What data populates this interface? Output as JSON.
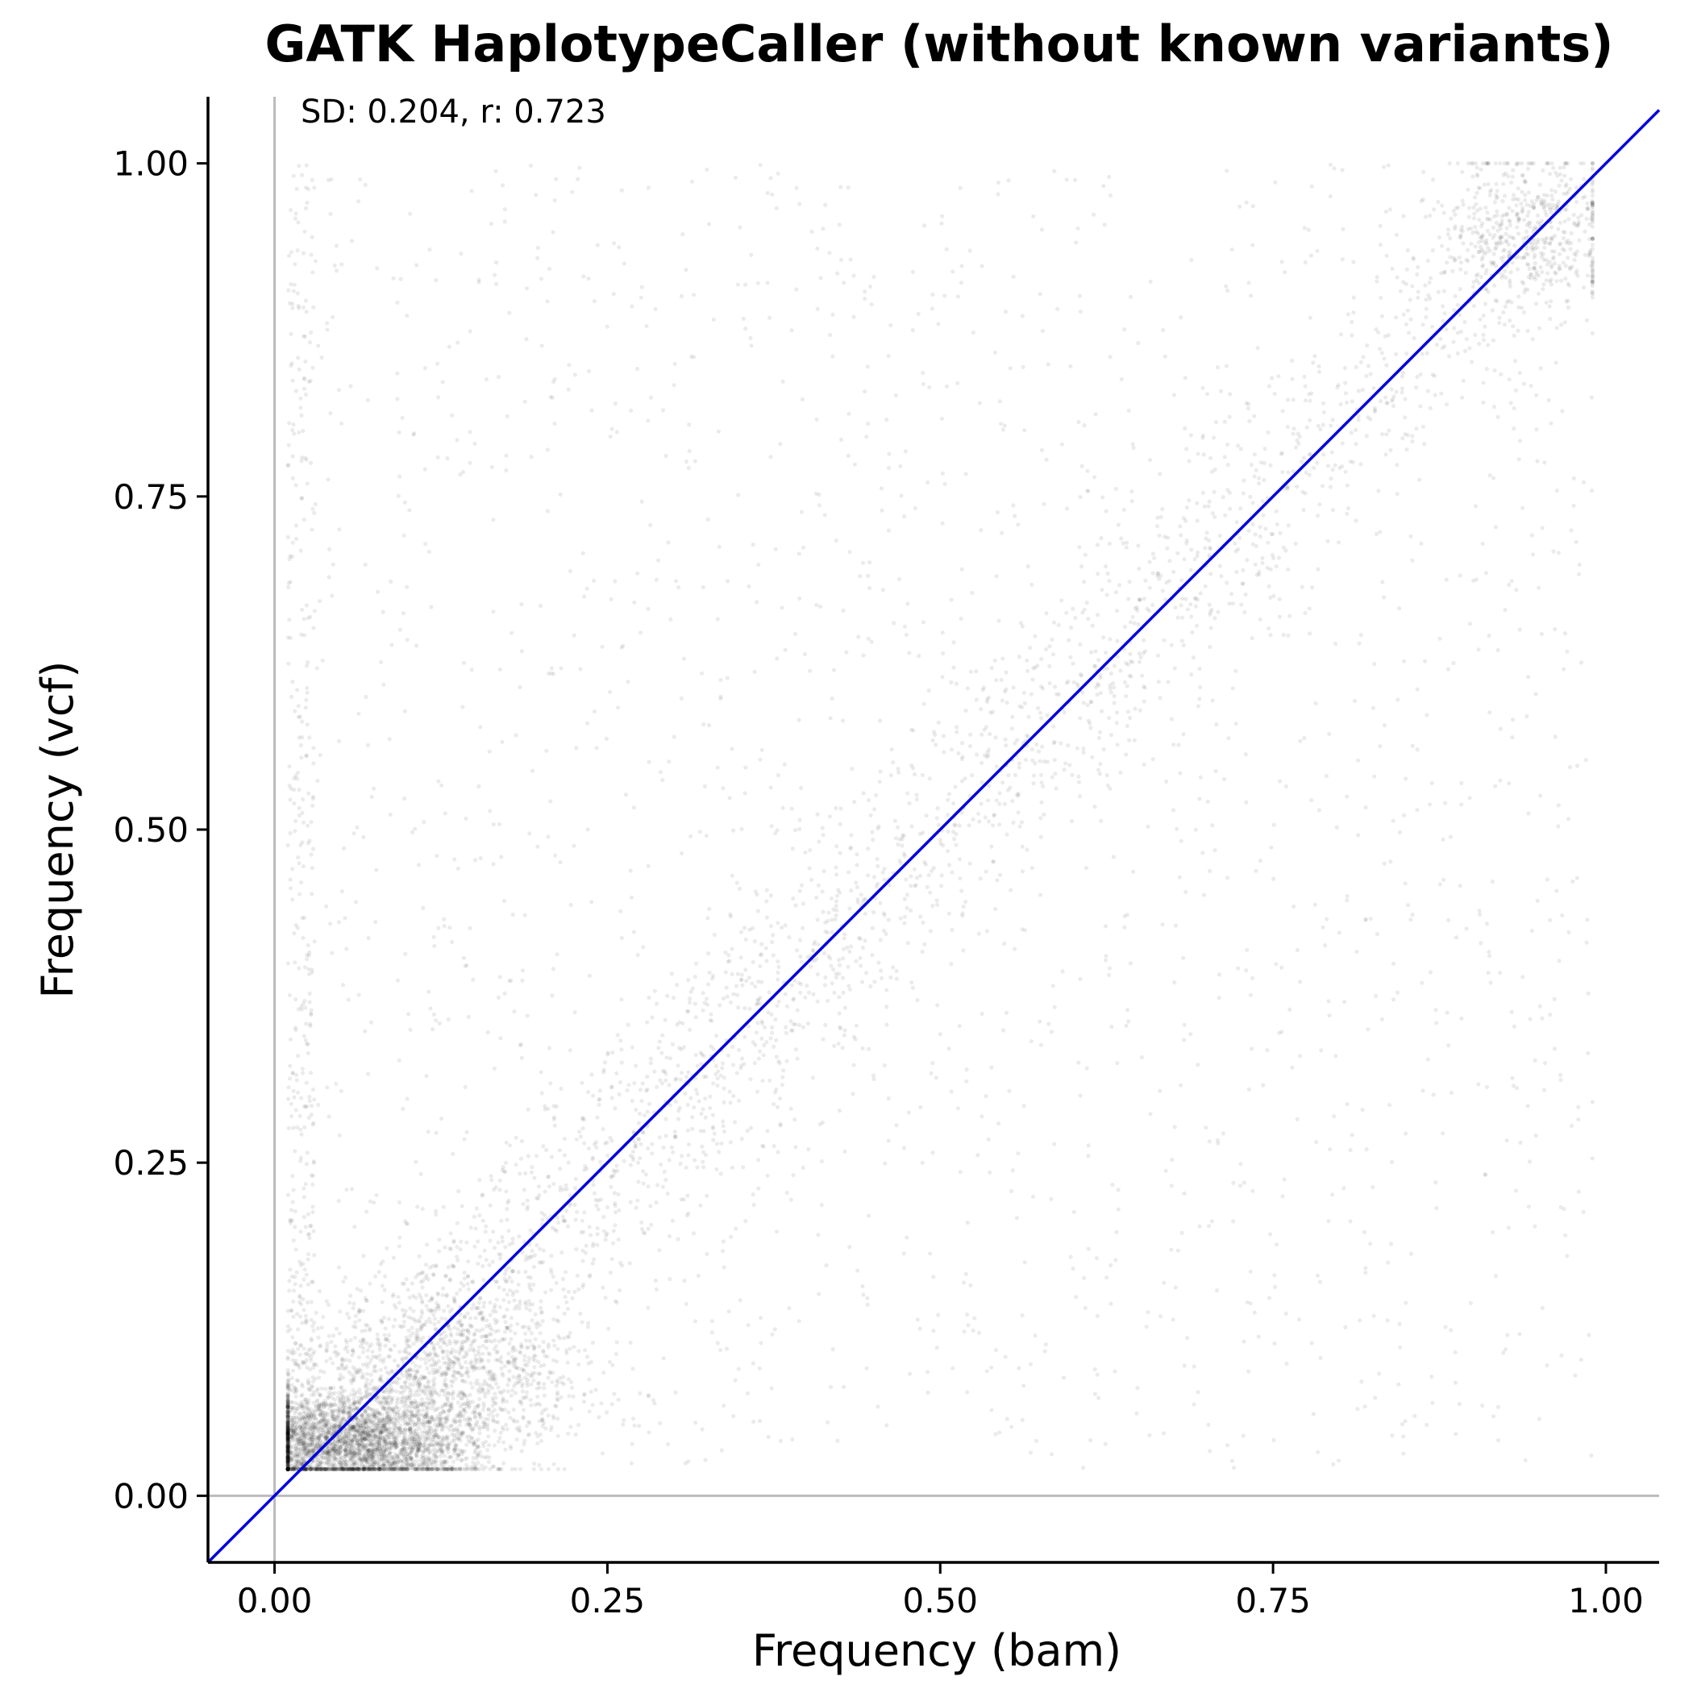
{
  "chart_data": {
    "type": "scatter",
    "title": "GATK HaplotypeCaller (without known variants)",
    "xlabel": "Frequency (bam)",
    "ylabel": "Frequency (vcf)",
    "xlim": [
      -0.05,
      1.04
    ],
    "ylim": [
      -0.05,
      1.05
    ],
    "xticks": [
      0.0,
      0.25,
      0.5,
      0.75,
      1.0
    ],
    "xtick_labels": [
      "0.00",
      "0.25",
      "0.50",
      "0.75",
      "1.00"
    ],
    "yticks": [
      0.0,
      0.25,
      0.5,
      0.75,
      1.0
    ],
    "ytick_labels": [
      "0.00",
      "0.25",
      "0.50",
      "0.75",
      "1.00"
    ],
    "annotation": "SD: 0.204, r: 0.723",
    "stats": {
      "sd": 0.204,
      "r": 0.723
    },
    "reference_line": {
      "kind": "identity",
      "equation": "y = x",
      "color": "#0000dd"
    },
    "reference_lines": [
      {
        "axis": "x",
        "value": 0.0,
        "color": "#bbbbbb"
      },
      {
        "axis": "y",
        "value": 0.0,
        "color": "#bbbbbb"
      }
    ],
    "point_color": "#000000",
    "point_opacity": 0.08,
    "grid": false,
    "legend": "none",
    "points_note": "dense cloud of semi-transparent points (many thousands)",
    "density_clusters": [
      {
        "x": 0.06,
        "y": 0.04,
        "sx": 0.045,
        "sy": 0.018,
        "weight": 0.3
      },
      {
        "x": 0.14,
        "y": 0.09,
        "sx": 0.05,
        "sy": 0.035,
        "weight": 0.12
      },
      {
        "x": 0.94,
        "y": 0.95,
        "sx": 0.035,
        "sy": 0.03,
        "weight": 0.05
      }
    ],
    "diagonal_band": {
      "x_range": [
        0.02,
        0.99
      ],
      "spread": 0.035,
      "weight": 0.28
    },
    "scatter_background": {
      "x_range": [
        0.01,
        0.99
      ],
      "y_range": [
        0.02,
        1.0
      ],
      "weight": 0.2
    },
    "left_edge_strip": {
      "x_range": [
        0.01,
        0.03
      ],
      "y_range": [
        0.02,
        1.0
      ],
      "weight": 0.05
    }
  }
}
